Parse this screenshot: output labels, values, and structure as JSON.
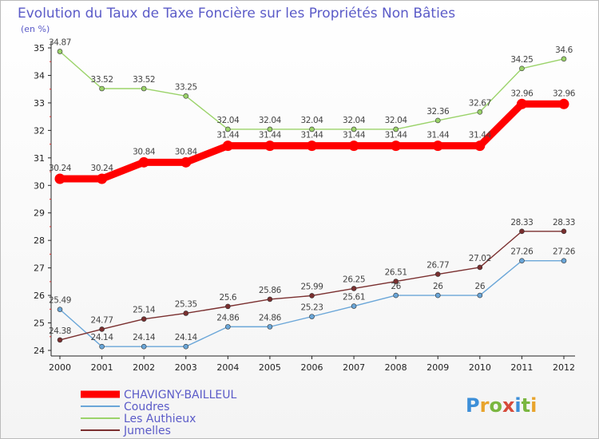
{
  "title": "Evolution du Taux de Taxe Foncière sur les Propriétés Non Bâties",
  "subtitle": "(en %)",
  "logo": {
    "text": "Proxiti",
    "colors": [
      "#3d8fd8",
      "#e8a42c",
      "#7ab640",
      "#d64a3a",
      "#3d8fd8",
      "#7ab640",
      "#e8a42c"
    ]
  },
  "chart_data": {
    "type": "line",
    "title": "Evolution du Taux de Taxe Foncière sur les Propriétés Non Bâties",
    "ylabel": "(en %)",
    "xlabel": "",
    "x": [
      "2000",
      "2001",
      "2002",
      "2003",
      "2004",
      "2005",
      "2006",
      "2007",
      "2008",
      "2009",
      "2010",
      "2011",
      "2012"
    ],
    "ylim": [
      24,
      35
    ],
    "yticks": [
      24,
      25,
      26,
      27,
      28,
      29,
      30,
      31,
      32,
      33,
      34,
      35
    ],
    "grid": false,
    "legend_position": "bottom-left",
    "series": [
      {
        "name": "CHAVIGNY-BAILLEUL",
        "color": "#ff0000",
        "emphasis": true,
        "values": [
          30.24,
          30.24,
          30.84,
          30.84,
          31.44,
          31.44,
          31.44,
          31.44,
          31.44,
          31.44,
          31.44,
          32.96,
          32.96
        ],
        "labels": [
          "30.24",
          "30.24",
          "30.84",
          "30.84",
          "31.44",
          "31.44",
          "31.44",
          "31.44",
          "31.44",
          "31.44",
          "31.44",
          "32.96",
          "32.96"
        ]
      },
      {
        "name": "Coudres",
        "color": "#6aa6d8",
        "emphasis": false,
        "values": [
          25.49,
          24.14,
          24.14,
          24.14,
          24.86,
          24.86,
          25.23,
          25.61,
          26,
          26,
          26,
          27.26,
          27.26
        ],
        "labels": [
          "25.49",
          "24.14",
          "24.14",
          "24.14",
          "24.86",
          "24.86",
          "25.23",
          "25.61",
          "26",
          "26",
          "26",
          "27.26",
          "27.26"
        ]
      },
      {
        "name": "Les Authieux",
        "color": "#9bd36a",
        "emphasis": false,
        "values": [
          34.87,
          33.52,
          33.52,
          33.25,
          32.04,
          32.04,
          32.04,
          32.04,
          32.04,
          32.36,
          32.67,
          34.25,
          34.6
        ],
        "labels": [
          "34.87",
          "33.52",
          "33.52",
          "33.25",
          "32.04",
          "32.04",
          "32.04",
          "32.04",
          "32.04",
          "32.36",
          "32.67",
          "34.25",
          "34.6"
        ]
      },
      {
        "name": "Jumelles",
        "color": "#7a2f2f",
        "emphasis": false,
        "values": [
          24.38,
          24.77,
          25.14,
          25.35,
          25.6,
          25.86,
          25.99,
          26.25,
          26.51,
          26.77,
          27.02,
          28.33,
          28.33
        ],
        "labels": [
          "24.38",
          "24.77",
          "25.14",
          "25.35",
          "25.6",
          "25.86",
          "25.99",
          "26.25",
          "26.51",
          "26.77",
          "27.02",
          "28.33",
          "28.33"
        ]
      }
    ]
  }
}
